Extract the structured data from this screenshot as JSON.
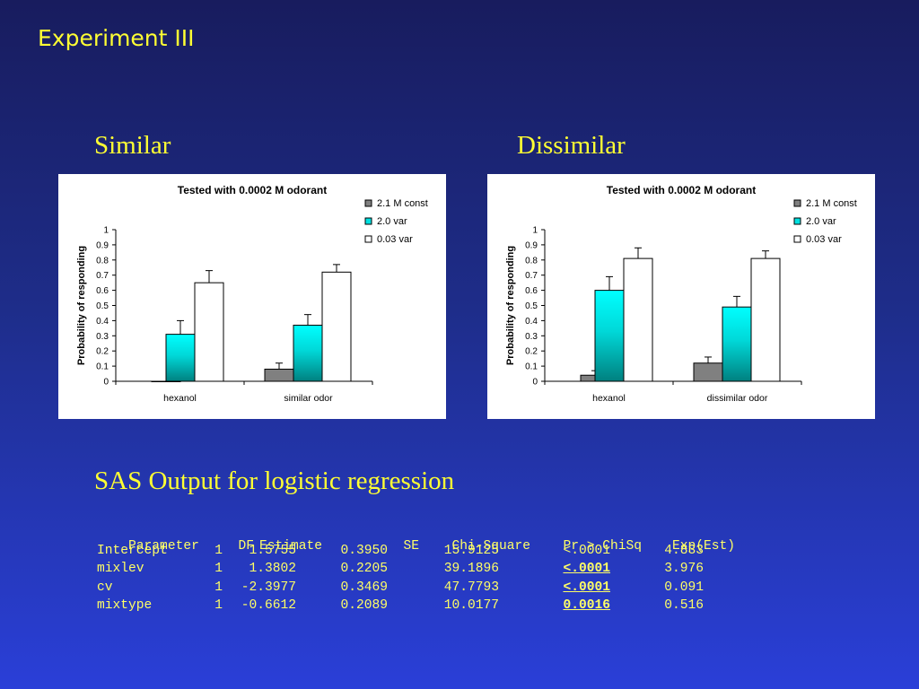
{
  "slide": {
    "title": "Experiment III"
  },
  "labels": {
    "left": "Similar",
    "right": "Dissimilar"
  },
  "chart_data": [
    {
      "type": "bar",
      "title": "Tested with 0.0002 M odorant",
      "ylabel": "Probability of responding",
      "xlabel": "",
      "ylim": [
        0,
        1
      ],
      "yticks": [
        "0",
        "0.1",
        "0.2",
        "0.3",
        "0.4",
        "0.5",
        "0.6",
        "0.7",
        "0.8",
        "0.9",
        "1"
      ],
      "categories": [
        "hexanol",
        "similar odor"
      ],
      "legend_position": "top-right",
      "series": [
        {
          "name": "2.1 M const",
          "color": "#808080",
          "values": [
            0.0,
            0.08
          ],
          "errors": [
            0.0,
            0.04
          ]
        },
        {
          "name": "2.0 var",
          "color": "#00e5e5",
          "values": [
            0.31,
            0.37
          ],
          "errors": [
            0.09,
            0.07
          ]
        },
        {
          "name": "0.03 var",
          "color": "#ffffff",
          "values": [
            0.65,
            0.72
          ],
          "errors": [
            0.08,
            0.05
          ]
        }
      ]
    },
    {
      "type": "bar",
      "title": "Tested with 0.0002 M odorant",
      "ylabel": "Probability of responding",
      "xlabel": "",
      "ylim": [
        0,
        1
      ],
      "yticks": [
        "0",
        "0.1",
        "0.2",
        "0.3",
        "0.4",
        "0.5",
        "0.6",
        "0.7",
        "0.8",
        "0.9",
        "1"
      ],
      "categories": [
        "hexanol",
        "dissimilar odor"
      ],
      "legend_position": "top-right",
      "series": [
        {
          "name": "2.1 M const",
          "color": "#808080",
          "values": [
            0.04,
            0.12
          ],
          "errors": [
            0.03,
            0.04
          ]
        },
        {
          "name": "2.0 var",
          "color": "#00e5e5",
          "values": [
            0.6,
            0.49
          ],
          "errors": [
            0.09,
            0.07
          ]
        },
        {
          "name": "0.03 var",
          "color": "#ffffff",
          "values": [
            0.81,
            0.81
          ],
          "errors": [
            0.07,
            0.05
          ]
        }
      ]
    }
  ],
  "sas": {
    "title": "SAS Output for logistic regression",
    "header": [
      "Parameter",
      "DF",
      "Estimate",
      "SE",
      "Chi-Square",
      "Pr > ChiSq",
      "Exp(Est)"
    ],
    "rows": [
      {
        "cells": [
          "Intercept",
          "1",
          "1.5755",
          "0.3950",
          "15.9125",
          "<.0001",
          "4.833"
        ],
        "highlight_p": false
      },
      {
        "cells": [
          "mixlev",
          "1",
          "1.3802",
          "0.2205",
          "39.1896",
          "<.0001",
          "3.976"
        ],
        "highlight_p": true
      },
      {
        "cells": [
          "cv",
          "1",
          "-2.3977",
          "0.3469",
          "47.7793",
          "<.0001",
          "0.091"
        ],
        "highlight_p": true
      },
      {
        "cells": [
          "mixtype",
          "1",
          "-0.6612",
          "0.2089",
          "10.0177",
          "0.0016",
          "0.516"
        ],
        "highlight_p": true
      }
    ]
  }
}
